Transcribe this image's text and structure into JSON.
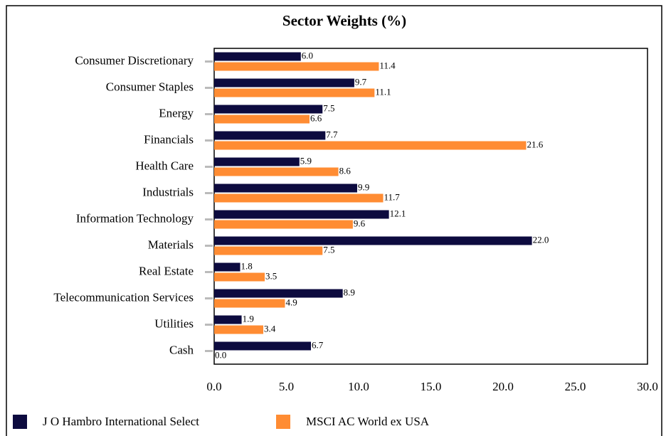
{
  "chart_data": {
    "type": "hbar",
    "title": "Sector Weights (%)",
    "categories": [
      "Consumer Discretionary",
      "Consumer Staples",
      "Energy",
      "Financials",
      "Health Care",
      "Industrials",
      "Information Technology",
      "Materials",
      "Real Estate",
      "Telecommunication Services",
      "Utilities",
      "Cash"
    ],
    "series": [
      {
        "name": "J O Hambro International Select",
        "color": "#0d0b3f",
        "values": [
          6.0,
          9.7,
          7.5,
          7.7,
          5.9,
          9.9,
          12.1,
          22.0,
          1.8,
          8.9,
          1.9,
          6.7
        ],
        "value_labels": [
          "6.0",
          "9.7",
          "7.5",
          "7.7",
          "5.9",
          "9.9",
          "12.1",
          "22.0",
          "1.8",
          "8.9",
          "1.9",
          "6.7"
        ]
      },
      {
        "name": "MSCI AC World ex USA",
        "color": "#ff8c33",
        "values": [
          11.4,
          11.1,
          6.6,
          21.6,
          8.6,
          11.7,
          9.6,
          7.5,
          3.5,
          4.9,
          3.4,
          0.0
        ],
        "value_labels": [
          "11.4",
          "11.1",
          "6.6",
          "21.6",
          "8.6",
          "11.7",
          "9.6",
          "7.5",
          "3.5",
          "4.9",
          "3.4",
          "0.0"
        ]
      }
    ],
    "xlim": [
      0,
      30
    ],
    "xticks": [
      {
        "value": 0,
        "label": "0.0"
      },
      {
        "value": 5,
        "label": "5.0"
      },
      {
        "value": 10,
        "label": "10.0"
      },
      {
        "value": 15,
        "label": "15.0"
      },
      {
        "value": 20,
        "label": "20.0"
      },
      {
        "value": 25,
        "label": "25.0"
      },
      {
        "value": 30,
        "label": "30.0"
      }
    ],
    "legend": "bottom"
  }
}
